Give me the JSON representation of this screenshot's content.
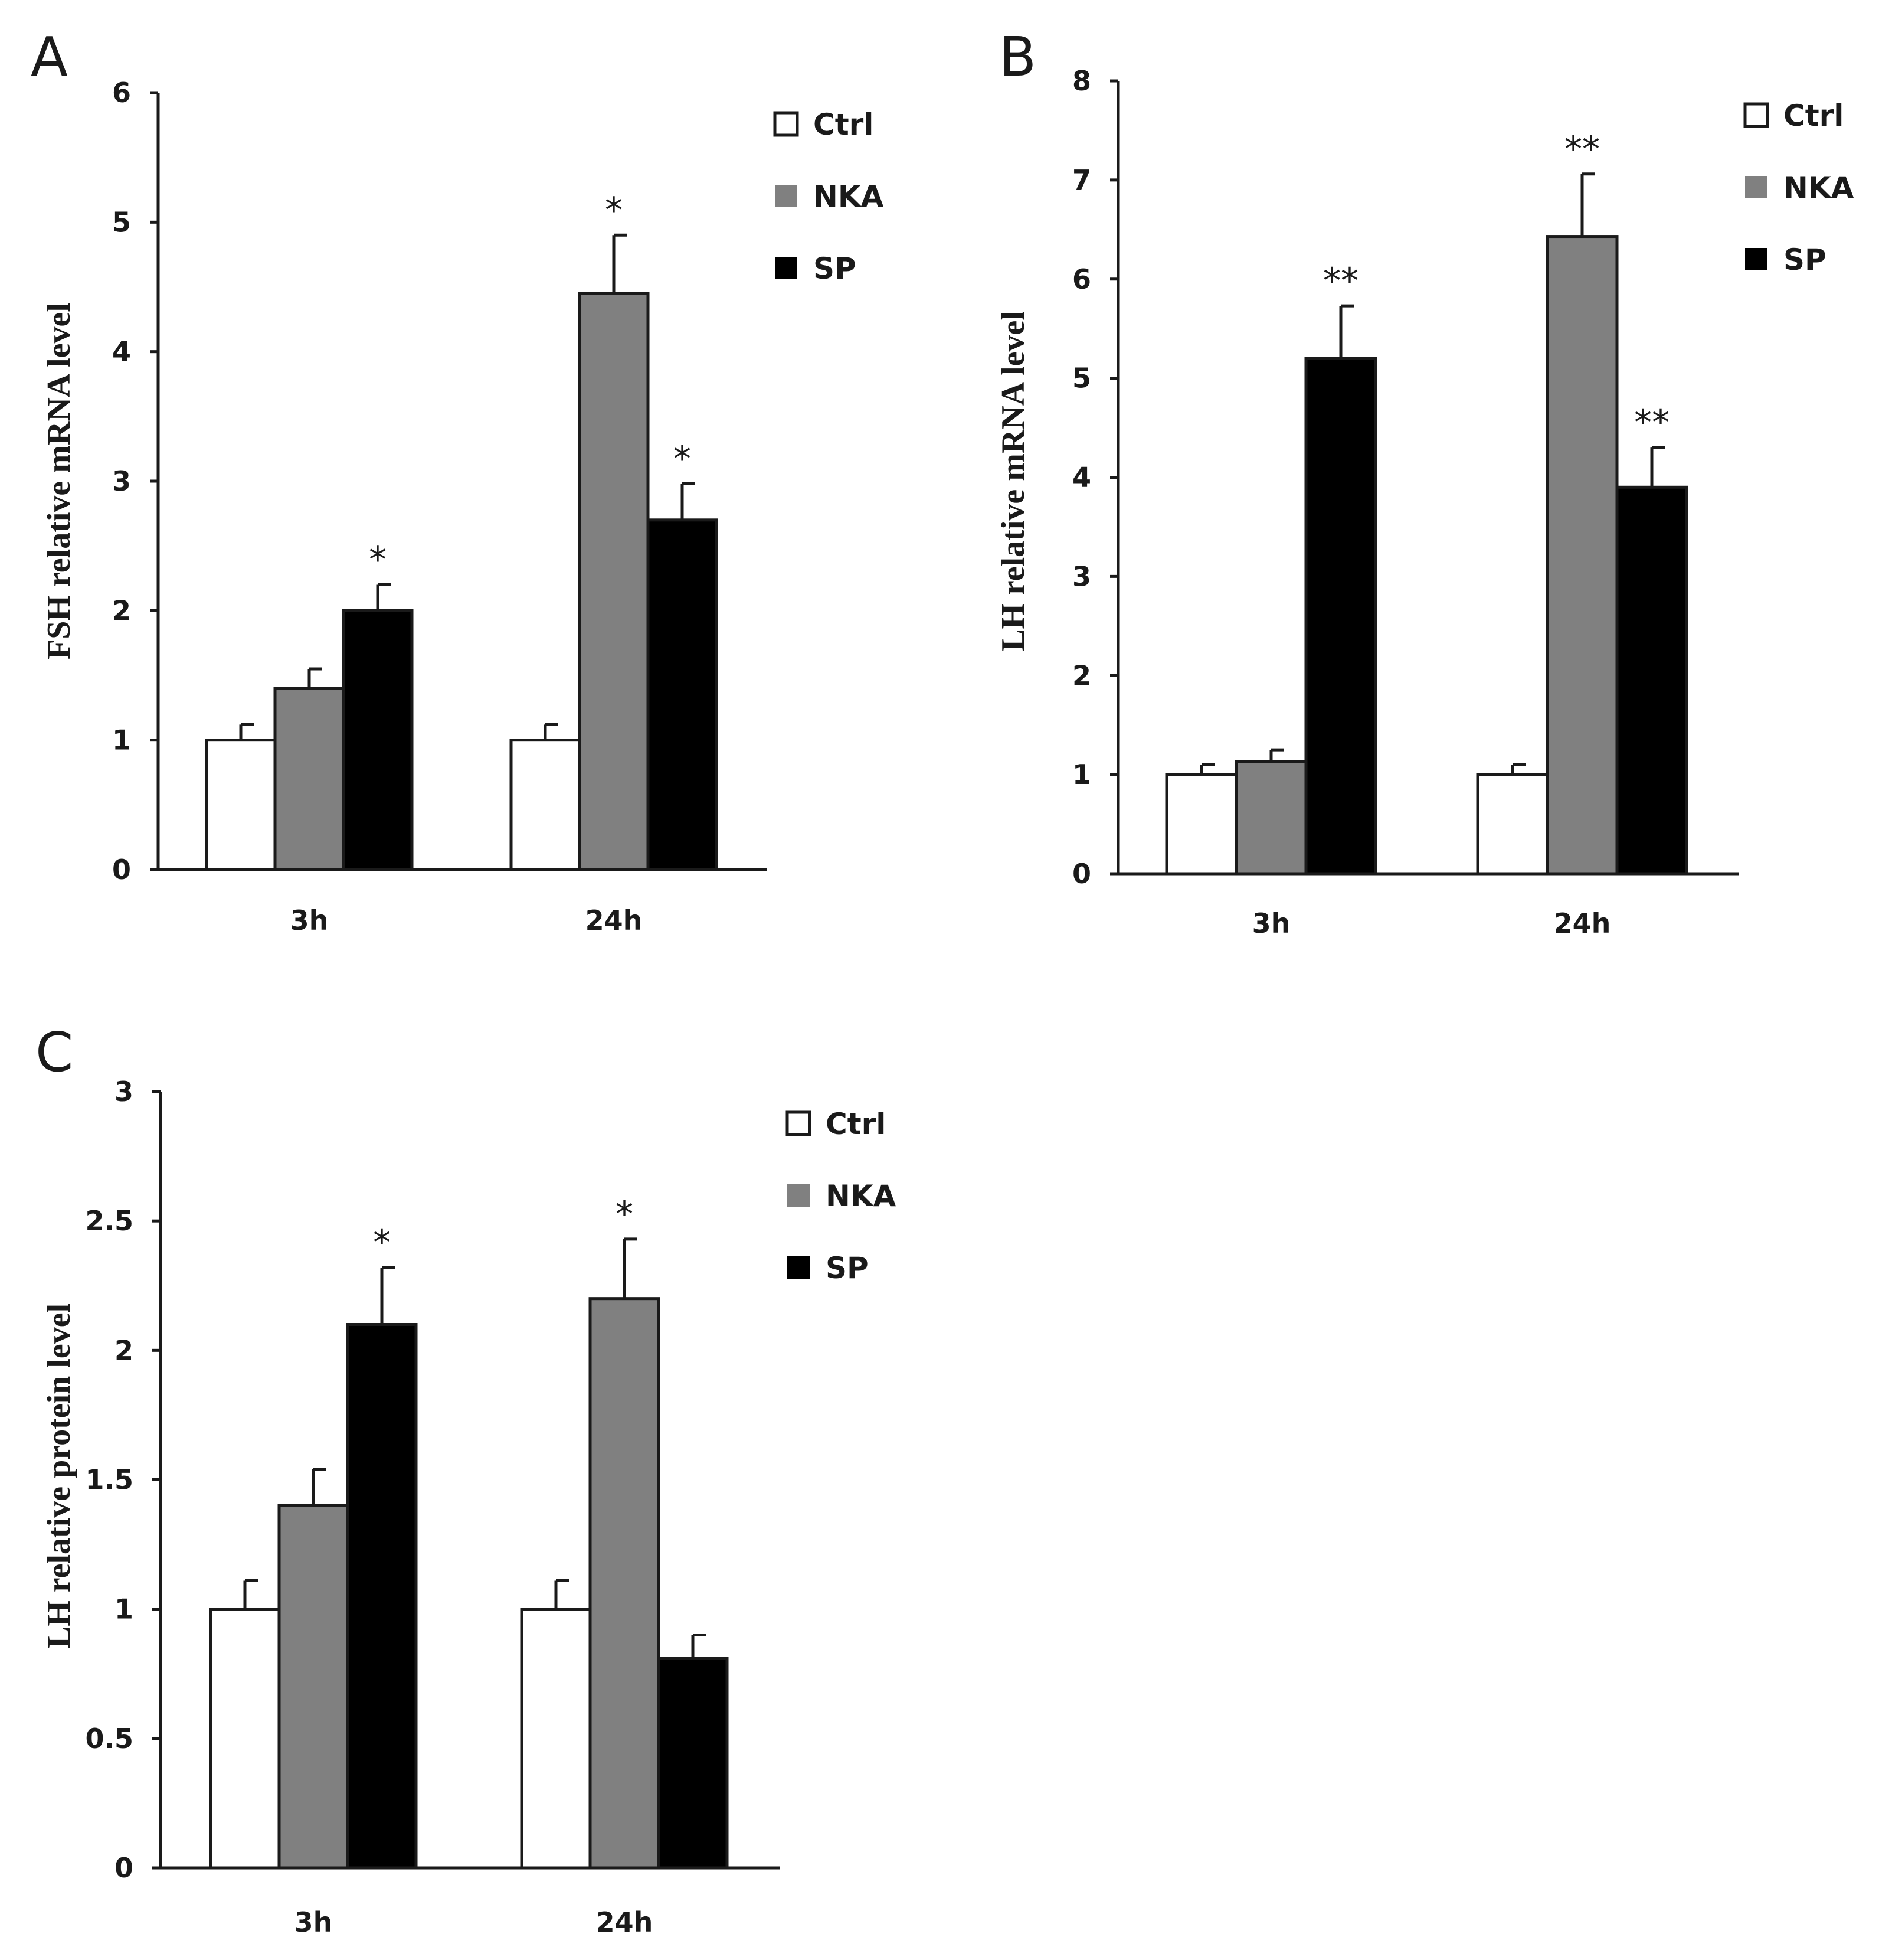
{
  "chart_data": [
    {
      "type": "bar",
      "panel": "A",
      "title": "",
      "xlabel": "",
      "ylabel": "FSH relative mRNA level",
      "categories": [
        "3h",
        "24h"
      ],
      "ylim": [
        0,
        6
      ],
      "yticks": [
        "0",
        "1",
        "2",
        "3",
        "4",
        "5",
        "6"
      ],
      "series": [
        {
          "name": "Ctrl",
          "values": [
            1.0,
            1.0
          ],
          "errors": [
            0.12,
            0.12
          ],
          "sig": [
            "",
            ""
          ]
        },
        {
          "name": "NKA",
          "values": [
            1.4,
            4.45
          ],
          "errors": [
            0.15,
            0.45
          ],
          "sig": [
            "",
            "*"
          ]
        },
        {
          "name": "SP",
          "values": [
            2.0,
            2.7
          ],
          "errors": [
            0.2,
            0.28
          ],
          "sig": [
            "*",
            "*"
          ]
        }
      ],
      "legend": "top-right"
    },
    {
      "type": "bar",
      "panel": "B",
      "title": "",
      "xlabel": "",
      "ylabel": "LH relative mRNA level",
      "categories": [
        "3h",
        "24h"
      ],
      "ylim": [
        0,
        8
      ],
      "yticks": [
        "0",
        "1",
        "2",
        "3",
        "4",
        "5",
        "6",
        "7",
        "8"
      ],
      "series": [
        {
          "name": "Ctrl",
          "values": [
            1.0,
            1.0
          ],
          "errors": [
            0.1,
            0.1
          ],
          "sig": [
            "",
            ""
          ]
        },
        {
          "name": "NKA",
          "values": [
            1.13,
            6.43
          ],
          "errors": [
            0.12,
            0.63
          ],
          "sig": [
            "",
            "**"
          ]
        },
        {
          "name": "SP",
          "values": [
            5.2,
            3.9
          ],
          "errors": [
            0.53,
            0.4
          ],
          "sig": [
            "**",
            "**"
          ]
        }
      ],
      "legend": "top-right"
    },
    {
      "type": "bar",
      "panel": "C",
      "title": "",
      "xlabel": "",
      "ylabel": "LH relative protein level",
      "categories": [
        "3h",
        "24h"
      ],
      "ylim": [
        0,
        3
      ],
      "yticks": [
        "0",
        "0.5",
        "1",
        "1.5",
        "2",
        "2.5",
        "3"
      ],
      "series": [
        {
          "name": "Ctrl",
          "values": [
            1.0,
            1.0
          ],
          "errors": [
            0.11,
            0.11
          ],
          "sig": [
            "",
            ""
          ]
        },
        {
          "name": "NKA",
          "values": [
            1.4,
            2.2
          ],
          "errors": [
            0.14,
            0.23
          ],
          "sig": [
            "",
            "*"
          ]
        },
        {
          "name": "SP",
          "values": [
            2.1,
            0.81
          ],
          "errors": [
            0.22,
            0.09
          ],
          "sig": [
            "*",
            ""
          ]
        }
      ],
      "legend": "top-right"
    }
  ],
  "colors": {
    "Ctrl": "#ffffff",
    "NKA": "#808080",
    "SP": "#000000",
    "axis": "#1a1a1a"
  }
}
